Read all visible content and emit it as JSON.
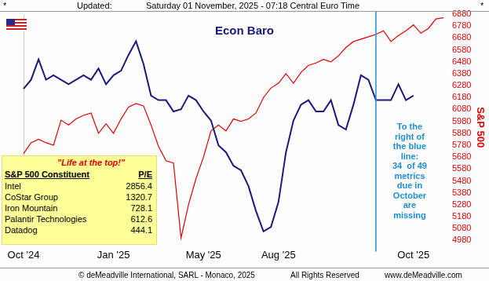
{
  "header": {
    "left": "*",
    "label": "Updated:",
    "text": "Saturday 01 November, 2025 - 07:18 Central Euro Time",
    "right": "*"
  },
  "chart_data": {
    "type": "line",
    "title": "Econ Baro",
    "y_label": "S&P 500",
    "categories": [
      "Oct '24",
      null,
      null,
      null,
      null,
      null,
      null,
      null,
      null,
      null,
      null,
      null,
      "Jan '25",
      null,
      null,
      null,
      null,
      null,
      null,
      null,
      null,
      null,
      null,
      null,
      "May '25",
      null,
      null,
      null,
      null,
      null,
      null,
      null,
      null,
      null,
      "Aug '25",
      null,
      null,
      null,
      null,
      null,
      null,
      null,
      null,
      null,
      null,
      null,
      null,
      null,
      null,
      null,
      null,
      null,
      "Oct '25",
      null,
      null,
      null,
      null
    ],
    "series": [
      {
        "name": "Econ Baro",
        "color": "#1a1a7a",
        "axis": "y2",
        "values": [
          67,
          71,
          80,
          71,
          73,
          71,
          69,
          71,
          73,
          71,
          76,
          69,
          73,
          75,
          82,
          88,
          78,
          64,
          62,
          62,
          57,
          58,
          64,
          62,
          57,
          53,
          42,
          39,
          33,
          31,
          24,
          13,
          4,
          6,
          17,
          39,
          53,
          60,
          62,
          57,
          57,
          62,
          51,
          49,
          60,
          73,
          71,
          62,
          62,
          62,
          69,
          62,
          64,
          null,
          null,
          null,
          null
        ]
      },
      {
        "name": "S&P 500",
        "color": "#e00000",
        "values": [
          5710,
          5800,
          5830,
          5800,
          5780,
          5990,
          5950,
          6000,
          6030,
          6050,
          5880,
          5960,
          5880,
          6000,
          6100,
          6130,
          6110,
          5950,
          5770,
          5650,
          5630,
          5000,
          5280,
          5500,
          5680,
          5900,
          5950,
          5900,
          6000,
          5980,
          6000,
          6050,
          6180,
          6260,
          6300,
          6380,
          6300,
          6390,
          6450,
          6470,
          6500,
          6480,
          6530,
          6600,
          6650,
          6670,
          6690,
          6710,
          6740,
          6650,
          6700,
          6740,
          6790,
          6720,
          6760,
          6840,
          6850
        ]
      }
    ],
    "ylim": [
      4980,
      6880
    ],
    "yticks": [
      4980,
      5080,
      5180,
      5280,
      5380,
      5480,
      5580,
      5680,
      5780,
      5880,
      5980,
      6080,
      6180,
      6280,
      6380,
      6480,
      6580,
      6680,
      6780,
      6880
    ],
    "y2lim": [
      0,
      100
    ],
    "grid": false,
    "vline": {
      "x": 47,
      "color": "#1e90e0"
    },
    "annotations": [
      {
        "text": [
          "To the",
          "right of",
          "the blue",
          "line:",
          "34  of 49",
          "metrics",
          "due in",
          "October",
          "are",
          "missing"
        ],
        "color": "#1e8fd6"
      }
    ]
  },
  "table": {
    "title": "\"Life at the top!\"",
    "columns": [
      "S&P 500 Constituent",
      "P/E"
    ],
    "rows": [
      [
        "Intel",
        2856.4
      ],
      [
        "CoStar Group",
        1320.7
      ],
      [
        "Iron Mountain",
        728.1
      ],
      [
        "Palantir Technologies",
        612.6
      ],
      [
        "Datadog",
        444.1
      ]
    ]
  },
  "footer": [
    "© deMeadville International, SARL - Monaco, 2025",
    "All Rights Reserved",
    "www.deMeadville.com"
  ]
}
